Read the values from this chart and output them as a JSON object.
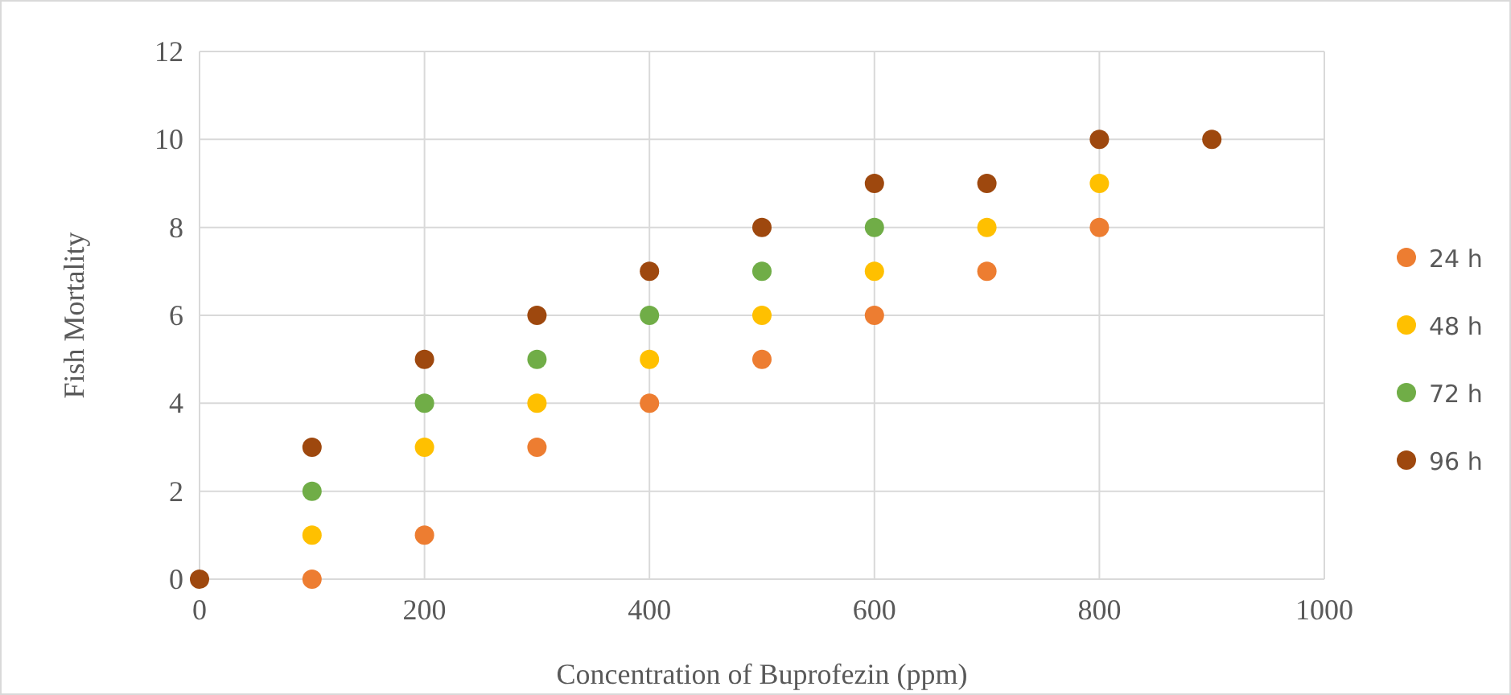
{
  "chart_data": {
    "type": "scatter",
    "xlabel": "Concentration of Buprofezin (ppm)",
    "ylabel": "Fish Mortality",
    "x": [
      0,
      100,
      200,
      300,
      400,
      500,
      600,
      700,
      800,
      900
    ],
    "xlim": [
      0,
      1000
    ],
    "xticks": [
      0,
      200,
      400,
      600,
      800,
      1000
    ],
    "ylim": [
      0,
      12
    ],
    "yticks": [
      0,
      2,
      4,
      6,
      8,
      10,
      12
    ],
    "grid": true,
    "legend": "right",
    "marker": "circle",
    "series": [
      {
        "name": "24 h",
        "color": "#ed7d31",
        "values": [
          null,
          0,
          1,
          3,
          4,
          5,
          6,
          7,
          8,
          null
        ]
      },
      {
        "name": "48 h",
        "color": "#ffc000",
        "values": [
          null,
          1,
          3,
          4,
          5,
          6,
          7,
          8,
          9,
          null
        ]
      },
      {
        "name": "72 h",
        "color": "#70ad47",
        "values": [
          null,
          2,
          4,
          5,
          6,
          7,
          8,
          null,
          null,
          null
        ]
      },
      {
        "name": "96 h",
        "color": "#9e480e",
        "values": [
          0,
          3,
          5,
          6,
          7,
          8,
          9,
          9,
          10,
          10
        ]
      }
    ]
  }
}
